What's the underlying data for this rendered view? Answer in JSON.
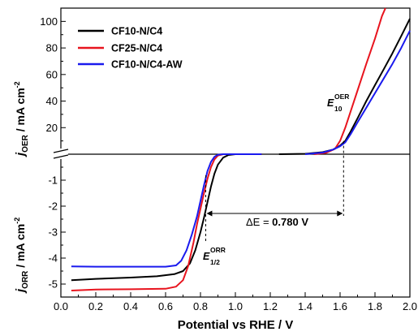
{
  "chart_data": {
    "type": "line",
    "xlabel": "Potential vs RHE / V",
    "xlim": [
      0.0,
      2.0
    ],
    "x_ticks": [
      "0.0",
      "0.2",
      "0.4",
      "0.6",
      "0.8",
      "1.0",
      "1.2",
      "1.4",
      "1.6",
      "1.8",
      "2.0"
    ],
    "panels": {
      "oer": {
        "ylabel_main": "j",
        "ylabel_sub": "OER",
        "ylabel_rest": " / mA cm",
        "ylabel_sup": "-2",
        "ylim": [
          0,
          110
        ],
        "y_ticks": [
          "20",
          "40",
          "60",
          "80",
          "100"
        ]
      },
      "orr": {
        "ylabel_main": "j",
        "ylabel_sub": "ORR",
        "ylabel_rest": " / mA cm",
        "ylabel_sup": "-2",
        "ylim": [
          -5.5,
          0.0
        ],
        "y_ticks": [
          "-1",
          "-2",
          "-3",
          "-4",
          "-5"
        ]
      }
    },
    "series": [
      {
        "name": "CF10-N/C4",
        "color": "#000000",
        "orr": [
          [
            0.06,
            -4.85
          ],
          [
            0.2,
            -4.8
          ],
          [
            0.4,
            -4.75
          ],
          [
            0.55,
            -4.7
          ],
          [
            0.65,
            -4.62
          ],
          [
            0.7,
            -4.5
          ],
          [
            0.74,
            -4.2
          ],
          [
            0.77,
            -3.7
          ],
          [
            0.8,
            -3.0
          ],
          [
            0.82,
            -2.45
          ],
          [
            0.84,
            -1.85
          ],
          [
            0.86,
            -1.25
          ],
          [
            0.88,
            -0.75
          ],
          [
            0.9,
            -0.4
          ],
          [
            0.93,
            -0.13
          ],
          [
            0.96,
            -0.03
          ],
          [
            1.0,
            0.0
          ],
          [
            1.15,
            0.0
          ]
        ],
        "oer": [
          [
            1.25,
            0.0
          ],
          [
            1.4,
            0.3
          ],
          [
            1.5,
            1.5
          ],
          [
            1.56,
            3.5
          ],
          [
            1.6,
            6.5
          ],
          [
            1.63,
            10
          ],
          [
            1.66,
            17
          ],
          [
            1.7,
            27
          ],
          [
            1.75,
            40
          ],
          [
            1.8,
            52
          ],
          [
            1.85,
            64
          ],
          [
            1.9,
            76
          ],
          [
            1.95,
            89
          ],
          [
            2.0,
            102
          ]
        ]
      },
      {
        "name": "CF25-N/C4",
        "color": "#e8141e",
        "orr": [
          [
            0.06,
            -5.25
          ],
          [
            0.2,
            -5.21
          ],
          [
            0.4,
            -5.2
          ],
          [
            0.6,
            -5.18
          ],
          [
            0.66,
            -5.1
          ],
          [
            0.7,
            -4.85
          ],
          [
            0.73,
            -4.3
          ],
          [
            0.76,
            -3.4
          ],
          [
            0.78,
            -2.7
          ],
          [
            0.8,
            -2.1
          ],
          [
            0.82,
            -1.5
          ],
          [
            0.84,
            -0.95
          ],
          [
            0.86,
            -0.5
          ],
          [
            0.88,
            -0.2
          ],
          [
            0.9,
            -0.05
          ],
          [
            0.93,
            0.0
          ],
          [
            1.15,
            0.0
          ]
        ],
        "oer": [
          [
            1.45,
            0.0
          ],
          [
            1.52,
            1.0
          ],
          [
            1.57,
            4.0
          ],
          [
            1.6,
            10
          ],
          [
            1.63,
            20
          ],
          [
            1.66,
            32
          ],
          [
            1.7,
            48
          ],
          [
            1.75,
            68
          ],
          [
            1.8,
            87
          ],
          [
            1.84,
            104
          ],
          [
            1.86,
            110
          ]
        ]
      },
      {
        "name": "CF10-N/C4-AW",
        "color": "#1a1aee",
        "orr": [
          [
            0.06,
            -4.32
          ],
          [
            0.2,
            -4.33
          ],
          [
            0.4,
            -4.33
          ],
          [
            0.6,
            -4.33
          ],
          [
            0.66,
            -4.28
          ],
          [
            0.69,
            -4.1
          ],
          [
            0.72,
            -3.7
          ],
          [
            0.75,
            -3.1
          ],
          [
            0.78,
            -2.4
          ],
          [
            0.8,
            -1.8
          ],
          [
            0.82,
            -1.2
          ],
          [
            0.84,
            -0.65
          ],
          [
            0.86,
            -0.3
          ],
          [
            0.88,
            -0.1
          ],
          [
            0.9,
            -0.02
          ],
          [
            0.93,
            0.0
          ],
          [
            1.15,
            0.0
          ]
        ],
        "oer": [
          [
            1.4,
            0.0
          ],
          [
            1.5,
            1.2
          ],
          [
            1.56,
            3.5
          ],
          [
            1.6,
            6.0
          ],
          [
            1.63,
            9.0
          ],
          [
            1.66,
            15
          ],
          [
            1.7,
            24
          ],
          [
            1.75,
            35
          ],
          [
            1.8,
            46
          ],
          [
            1.85,
            57
          ],
          [
            1.9,
            68
          ],
          [
            1.95,
            80
          ],
          [
            2.0,
            93
          ]
        ]
      }
    ],
    "annotations": {
      "e10_label": "E",
      "e10_sub": "10",
      "e10_sup": "OER",
      "e10_x": 1.62,
      "e12_label": "E",
      "e12_sub": "1/2",
      "e12_sup": "ORR",
      "e12_x": 0.83,
      "delta_prefix": "ΔE = ",
      "delta_value": "0.780 V"
    },
    "legend_position": "top-left",
    "grid": false
  }
}
